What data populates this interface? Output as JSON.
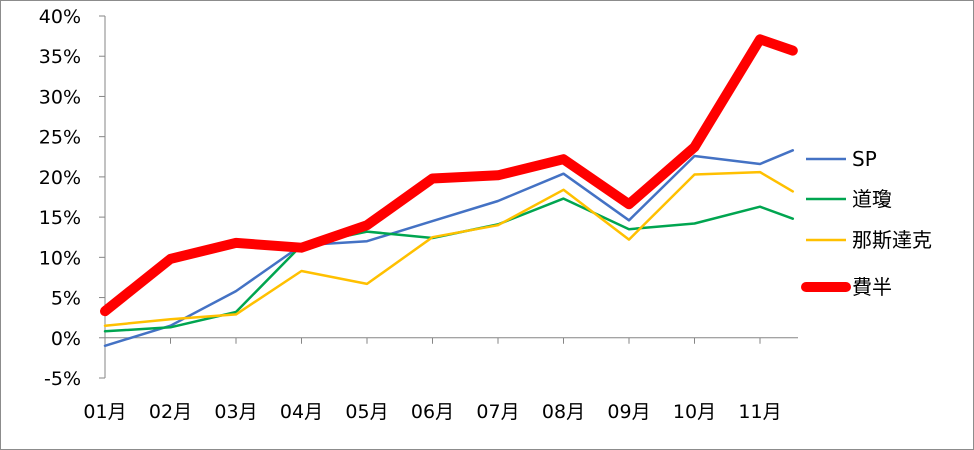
{
  "chart_data": {
    "type": "line",
    "categories": [
      "01月",
      "02月",
      "03月",
      "04月",
      "05月",
      "06月",
      "07月",
      "08月",
      "09月",
      "10月",
      "11月"
    ],
    "y_tick_labels": [
      "40%",
      "35%",
      "30%",
      "25%",
      "20%",
      "15%",
      "10%",
      "5%",
      "0%",
      "-5%"
    ],
    "ylim": [
      -5,
      40
    ],
    "y_unit": "%",
    "x": [
      1,
      2,
      3,
      4,
      5,
      6,
      7,
      8,
      9,
      10,
      11,
      11.5
    ],
    "grid": false,
    "legend_position": "right",
    "series": [
      {
        "name": "SP",
        "color": "#4472C4",
        "width": 2.5,
        "values": [
          -1.0,
          1.5,
          5.8,
          11.5,
          12.0,
          14.5,
          17.0,
          20.4,
          14.6,
          22.6,
          21.6,
          23.3
        ]
      },
      {
        "name": "道瓊",
        "color": "#00A550",
        "width": 2.5,
        "values": [
          0.8,
          1.3,
          3.2,
          11.5,
          13.2,
          12.4,
          14.1,
          17.3,
          13.5,
          14.2,
          16.3,
          14.8
        ]
      },
      {
        "name": "那斯達克",
        "color": "#FFC000",
        "width": 2.5,
        "values": [
          1.5,
          2.3,
          2.9,
          8.3,
          6.7,
          12.5,
          14.0,
          18.4,
          12.2,
          20.3,
          20.6,
          18.2
        ]
      },
      {
        "name": "費半",
        "color": "#FF0000",
        "width": 10,
        "values": [
          3.3,
          9.8,
          11.8,
          11.2,
          14.0,
          19.8,
          20.2,
          22.2,
          16.6,
          23.7,
          37.1,
          35.7
        ]
      }
    ]
  }
}
